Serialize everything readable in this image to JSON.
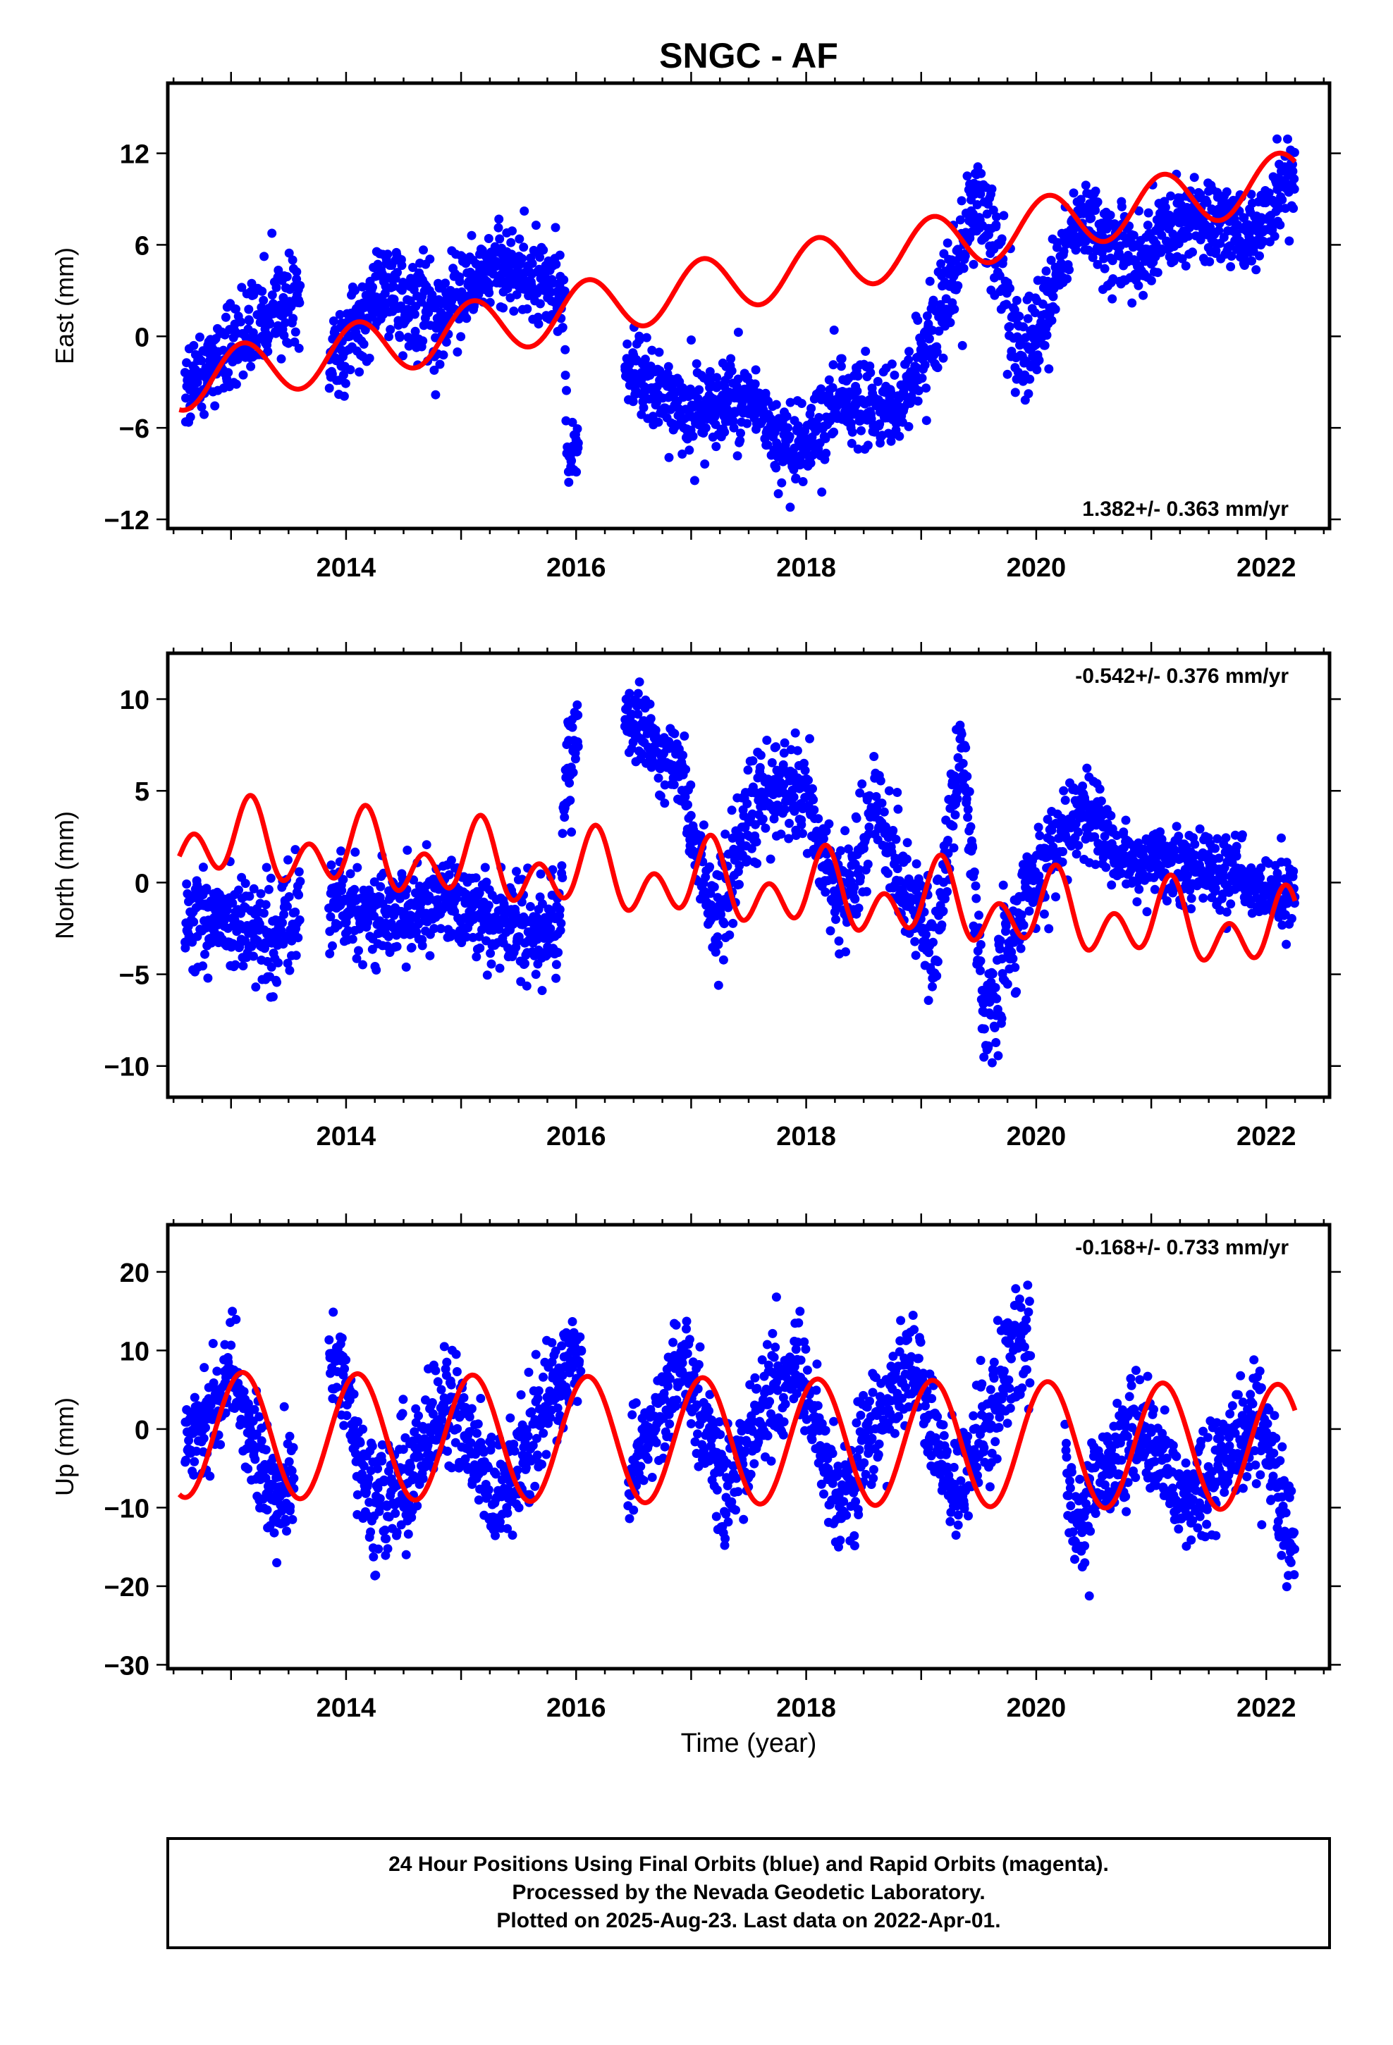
{
  "title": "SNGC - AF",
  "x_axis_label": "Time (year)",
  "footer": {
    "line1": "24 Hour Positions Using Final Orbits (blue) and Rapid Orbits (magenta).",
    "line2": "Processed by the Nevada Geodetic Laboratory.",
    "line3": "Plotted on 2025-Aug-23. Last data on 2022-Apr-01."
  },
  "colors": {
    "data": "#0000ff",
    "model": "#ff0000",
    "frame": "#000000"
  },
  "chart_data": [
    {
      "type": "scatter",
      "ylabel": "East (mm)",
      "rate_label": "1.382+/- 0.363 mm/yr",
      "xlim": [
        2012.45,
        2022.55
      ],
      "ylim": [
        -12.6,
        16.6
      ],
      "x_ticks": [
        2014,
        2016,
        2018,
        2020,
        2022
      ],
      "y_ticks": [
        -12,
        -6,
        0,
        6,
        12
      ],
      "data_profile": {
        "x": [
          2012.6,
          2013.0,
          2013.5,
          2013.85,
          2014.3,
          2014.8,
          2015.3,
          2015.9,
          2015.92,
          2016.1,
          2016.45,
          2017.0,
          2017.5,
          2017.9,
          2018.3,
          2018.8,
          2019.1,
          2019.5,
          2019.9,
          2020.35,
          2020.9,
          2021.35,
          2021.9,
          2022.25
        ],
        "y": [
          -3.5,
          -1.0,
          2.5,
          -2.0,
          3.0,
          1.0,
          5.0,
          2.5,
          -8.0,
          -6.0,
          -2.0,
          -5.0,
          -4.0,
          -8.0,
          -4.0,
          -5.0,
          0.5,
          9.0,
          -2.0,
          8.0,
          5.0,
          8.0,
          6.5,
          11.0
        ],
        "spread": [
          1.5,
          1.5,
          2.0,
          1.5,
          2.0,
          2.0,
          1.5,
          1.5,
          1.0,
          1.5,
          1.5,
          1.5,
          1.5,
          1.8,
          1.5,
          1.5,
          2.0,
          2.5,
          2.0,
          1.5,
          1.5,
          1.5,
          1.5,
          2.0
        ],
        "gaps": [
          [
            2013.6,
            2013.85
          ],
          [
            2016.02,
            2016.42
          ]
        ]
      },
      "model": {
        "start_year": 2012.55,
        "end_year": 2022.25,
        "offset": -3.05,
        "rate": 1.382,
        "annual_amplitude": 1.85,
        "annual_phase_year": 2012.85
      }
    },
    {
      "type": "scatter",
      "ylabel": "North (mm)",
      "rate_label": "-0.542+/- 0.376 mm/yr",
      "xlim": [
        2012.45,
        2022.55
      ],
      "ylim": [
        -11.7,
        12.5
      ],
      "x_ticks": [
        2014,
        2016,
        2018,
        2020,
        2022
      ],
      "y_ticks": [
        -10,
        -5,
        0,
        5,
        10
      ],
      "data_profile": {
        "x": [
          2012.6,
          2013.0,
          2013.4,
          2013.85,
          2014.3,
          2014.8,
          2015.3,
          2015.85,
          2015.92,
          2016.05,
          2016.45,
          2016.9,
          2017.2,
          2017.6,
          2018.0,
          2018.3,
          2018.6,
          2019.1,
          2019.35,
          2019.55,
          2019.95,
          2020.4,
          2020.8,
          2021.4,
          2021.9,
          2022.25
        ],
        "y": [
          -2.0,
          -2.0,
          -3.0,
          -1.0,
          -2.0,
          -1.0,
          -2.0,
          -3.0,
          7.0,
          8.5,
          9.0,
          6.0,
          -2.0,
          5.0,
          5.0,
          -2.0,
          4.0,
          -4.0,
          7.5,
          -8.0,
          0.0,
          4.0,
          1.0,
          1.0,
          0.0,
          -1.0
        ],
        "spread": [
          1.5,
          1.5,
          1.8,
          1.5,
          1.5,
          1.5,
          1.5,
          1.8,
          1.5,
          1.8,
          1.2,
          1.2,
          2.0,
          1.5,
          1.5,
          2.0,
          1.5,
          2.0,
          1.5,
          2.0,
          1.5,
          1.2,
          1.2,
          1.2,
          1.2,
          1.5
        ],
        "gaps": [
          [
            2013.6,
            2013.85
          ],
          [
            2016.02,
            2016.42
          ]
        ]
      },
      "model": {
        "start_year": 2012.55,
        "end_year": 2022.25,
        "offset": 2.4,
        "rate": -0.542,
        "annual_amplitude": 1.2,
        "annual_phase_year": 2012.9,
        "semiannual_amplitude": 1.5,
        "semiannual_phase_year": 2012.55
      }
    },
    {
      "type": "scatter",
      "ylabel": "Up (mm)",
      "rate_label": "-0.168+/- 0.733 mm/yr",
      "xlim": [
        2012.45,
        2022.55
      ],
      "ylim": [
        -30.5,
        26.0
      ],
      "x_ticks": [
        2014,
        2016,
        2018,
        2020,
        2022
      ],
      "y_ticks": [
        -30,
        -20,
        -10,
        0,
        10,
        20
      ],
      "data_profile": {
        "x": [
          2012.6,
          2013.0,
          2013.35,
          2013.6,
          2013.9,
          2014.25,
          2014.6,
          2014.9,
          2015.3,
          2015.9,
          2016.0,
          2016.4,
          2016.9,
          2017.3,
          2017.9,
          2018.3,
          2018.9,
          2019.3,
          2019.9,
          2020.0,
          2020.35,
          2020.85,
          2021.35,
          2021.9,
          2022.25
        ],
        "y": [
          -3,
          7,
          -8,
          -6,
          10,
          -10,
          -5,
          4,
          -10,
          8,
          10,
          -8,
          9,
          -8,
          9,
          -9,
          8,
          -8,
          12,
          10,
          -12,
          0,
          -10,
          2,
          -14
        ],
        "spread": [
          4,
          3.5,
          4,
          4,
          4,
          5,
          4.5,
          4,
          4.5,
          4,
          4,
          4,
          4,
          4,
          4,
          4,
          4,
          4,
          5,
          4,
          4,
          4,
          4,
          4,
          5
        ],
        "gaps": [
          [
            2013.55,
            2013.85
          ],
          [
            2016.05,
            2016.45
          ],
          [
            2019.95,
            2020.25
          ]
        ]
      },
      "model": {
        "start_year": 2012.55,
        "end_year": 2022.25,
        "offset": -0.7,
        "rate": -0.168,
        "annual_amplitude": 8.0,
        "annual_phase_year": 2012.85
      }
    }
  ]
}
